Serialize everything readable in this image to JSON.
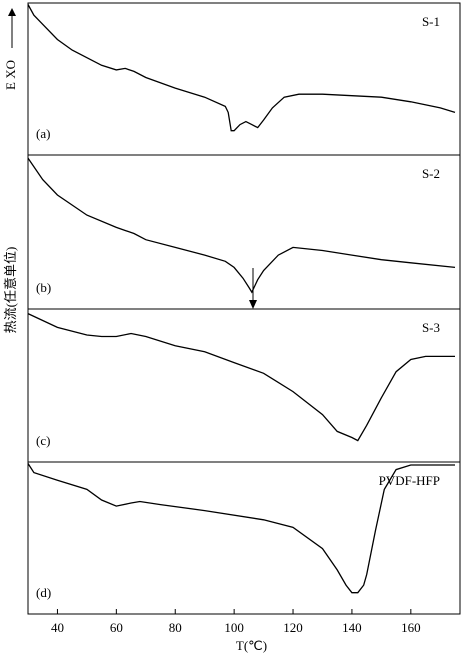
{
  "figure": {
    "ylabel": "热流(任意单位)",
    "exo": "E XO"
  },
  "chart_data": [
    {
      "type": "line",
      "label": "(a)",
      "xlim": [
        30,
        175
      ],
      "ylim": [
        0,
        100
      ],
      "series": [
        {
          "name": "S-1",
          "color": "#000000",
          "x": [
            30,
            32,
            35,
            40,
            45,
            50,
            55,
            60,
            63,
            66,
            70,
            80,
            90,
            97,
            98,
            99,
            100,
            102,
            104,
            106,
            108,
            110,
            113,
            117,
            122,
            130,
            140,
            150,
            160,
            170,
            175
          ],
          "values": [
            99,
            92,
            86,
            76,
            69,
            64,
            59,
            56,
            57,
            55,
            51,
            44,
            38,
            32,
            28,
            16,
            16,
            20,
            22,
            20,
            18,
            23,
            31,
            38,
            40,
            40,
            39,
            38,
            35,
            31,
            28
          ]
        }
      ]
    },
    {
      "type": "line",
      "label": "(b)",
      "xlim": [
        30,
        175
      ],
      "ylim": [
        0,
        100
      ],
      "series": [
        {
          "name": "S-2",
          "color": "#000000",
          "x": [
            30,
            35,
            40,
            50,
            60,
            63,
            66,
            70,
            80,
            90,
            97,
            100,
            103,
            105,
            106,
            107,
            108,
            110,
            115,
            120,
            130,
            140,
            150,
            160,
            175
          ],
          "values": [
            98,
            84,
            74,
            61,
            53,
            51,
            49,
            45,
            40,
            35,
            31,
            27,
            20,
            14,
            11,
            15,
            19,
            25,
            35,
            40,
            38,
            35,
            32,
            30,
            27
          ]
        }
      ]
    },
    {
      "type": "line",
      "label": "(c)",
      "xlim": [
        30,
        175
      ],
      "ylim": [
        0,
        100
      ],
      "series": [
        {
          "name": "S-3",
          "color": "#000000",
          "x": [
            30,
            40,
            50,
            55,
            60,
            65,
            70,
            80,
            90,
            100,
            110,
            120,
            130,
            135,
            140,
            142,
            145,
            150,
            155,
            160,
            165,
            175
          ],
          "values": [
            97,
            88,
            83,
            82,
            82,
            84,
            82,
            76,
            72,
            65,
            58,
            46,
            31,
            20,
            16,
            14,
            24,
            42,
            59,
            67,
            69,
            69
          ]
        }
      ]
    },
    {
      "type": "line",
      "label": "(d)",
      "xlim": [
        30,
        175
      ],
      "ylim": [
        0,
        100
      ],
      "xticks": [
        40,
        60,
        80,
        100,
        120,
        140,
        160
      ],
      "xlabel": "T(℃)",
      "series": [
        {
          "name": "PVDF-HFP",
          "color": "#000000",
          "x": [
            30,
            32,
            40,
            50,
            55,
            60,
            65,
            68,
            75,
            90,
            110,
            120,
            130,
            135,
            138,
            140,
            142,
            144,
            145,
            148,
            151,
            155,
            160,
            175
          ],
          "values": [
            99,
            93,
            88,
            82,
            75,
            71,
            73,
            74,
            72,
            68,
            62,
            57,
            43,
            29,
            19,
            14,
            14,
            19,
            26,
            55,
            82,
            95,
            98,
            98
          ]
        }
      ]
    }
  ]
}
